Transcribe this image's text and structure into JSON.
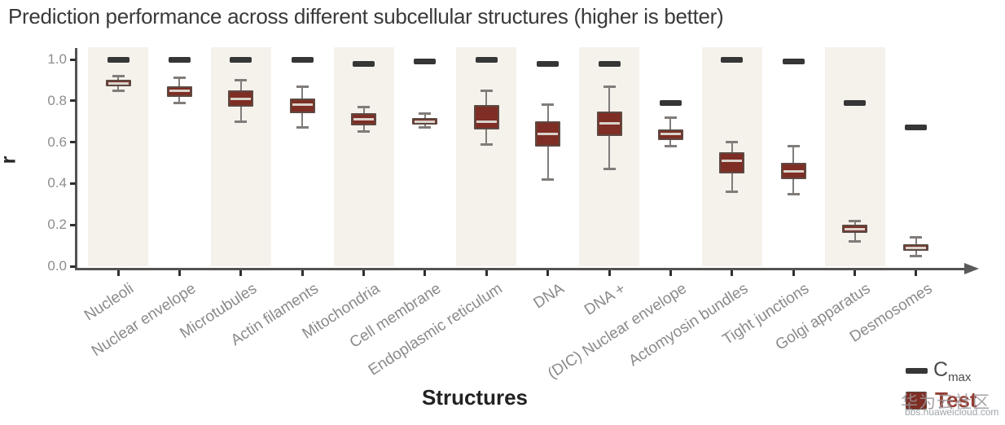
{
  "title": "Prediction performance across different subcellular structures (higher is better)",
  "chart_data": {
    "type": "box",
    "title": "Prediction performance across different subcellular structures (higher is better)",
    "xlabel": "Structures",
    "ylabel": "r",
    "ylim": [
      0.0,
      1.05
    ],
    "yticks": [
      1.0,
      0.8,
      0.6,
      0.4,
      0.2,
      0.0
    ],
    "grid": false,
    "striped_background": true,
    "legend_position": "bottom-right",
    "categories": [
      "Nucleoli",
      "Nuclear envelope",
      "Microtubules",
      "Actin filaments",
      "Mitochondria",
      "Cell membrane",
      "Endoplasmic reticulum",
      "DNA",
      "DNA +",
      "(DIC) Nuclear envelope",
      "Actomyosin bundles",
      "Tight junctions",
      "Golgi apparatus",
      "Desmosomes"
    ],
    "series": [
      {
        "name": "Cmax",
        "type": "dash-marker",
        "values": [
          1.0,
          1.0,
          1.0,
          1.0,
          0.98,
          0.99,
          1.0,
          0.98,
          0.98,
          0.79,
          1.0,
          0.99,
          0.79,
          0.67
        ]
      },
      {
        "name": "Test",
        "type": "boxplot",
        "boxes": [
          {
            "whisker_low": 0.85,
            "q1": 0.87,
            "median": 0.885,
            "q3": 0.9,
            "whisker_high": 0.92
          },
          {
            "whisker_low": 0.79,
            "q1": 0.82,
            "median": 0.85,
            "q3": 0.87,
            "whisker_high": 0.91
          },
          {
            "whisker_low": 0.7,
            "q1": 0.77,
            "median": 0.81,
            "q3": 0.85,
            "whisker_high": 0.9
          },
          {
            "whisker_low": 0.67,
            "q1": 0.74,
            "median": 0.78,
            "q3": 0.81,
            "whisker_high": 0.87
          },
          {
            "whisker_low": 0.65,
            "q1": 0.68,
            "median": 0.71,
            "q3": 0.74,
            "whisker_high": 0.77
          },
          {
            "whisker_low": 0.67,
            "q1": 0.685,
            "median": 0.7,
            "q3": 0.715,
            "whisker_high": 0.74
          },
          {
            "whisker_low": 0.59,
            "q1": 0.66,
            "median": 0.7,
            "q3": 0.78,
            "whisker_high": 0.85
          },
          {
            "whisker_low": 0.42,
            "q1": 0.58,
            "median": 0.64,
            "q3": 0.7,
            "whisker_high": 0.78
          },
          {
            "whisker_low": 0.47,
            "q1": 0.63,
            "median": 0.69,
            "q3": 0.75,
            "whisker_high": 0.87
          },
          {
            "whisker_low": 0.58,
            "q1": 0.61,
            "median": 0.64,
            "q3": 0.66,
            "whisker_high": 0.72
          },
          {
            "whisker_low": 0.36,
            "q1": 0.45,
            "median": 0.51,
            "q3": 0.55,
            "whisker_high": 0.6
          },
          {
            "whisker_low": 0.35,
            "q1": 0.42,
            "median": 0.46,
            "q3": 0.5,
            "whisker_high": 0.58
          },
          {
            "whisker_low": 0.12,
            "q1": 0.16,
            "median": 0.18,
            "q3": 0.2,
            "whisker_high": 0.22
          },
          {
            "whisker_low": 0.05,
            "q1": 0.075,
            "median": 0.09,
            "q3": 0.105,
            "whisker_high": 0.14
          }
        ]
      }
    ],
    "legend": {
      "items": [
        {
          "name": "cmax",
          "label_main": "C",
          "label_sub": "max",
          "marker": "dash",
          "color": "#363636"
        },
        {
          "name": "test",
          "label": "Test",
          "marker": "box",
          "color": "#7e2e24"
        }
      ]
    }
  },
  "colors": {
    "box_fill": "#7e2e24",
    "box_border": "#5d4a43",
    "whisker": "#807c7a",
    "median_line": "#d9d3cc",
    "cmax_dash": "#363636",
    "stripe": "#f5f2eb",
    "axis": "#555351",
    "tick_label": "#8d8d8d",
    "category_label": "#8a8a8a",
    "title_text": "#3a3a3a",
    "test_legend_text": "#8b2d22"
  },
  "watermark": {
    "text": "华为云社区",
    "url": "bbs.huaweicloud.com"
  }
}
